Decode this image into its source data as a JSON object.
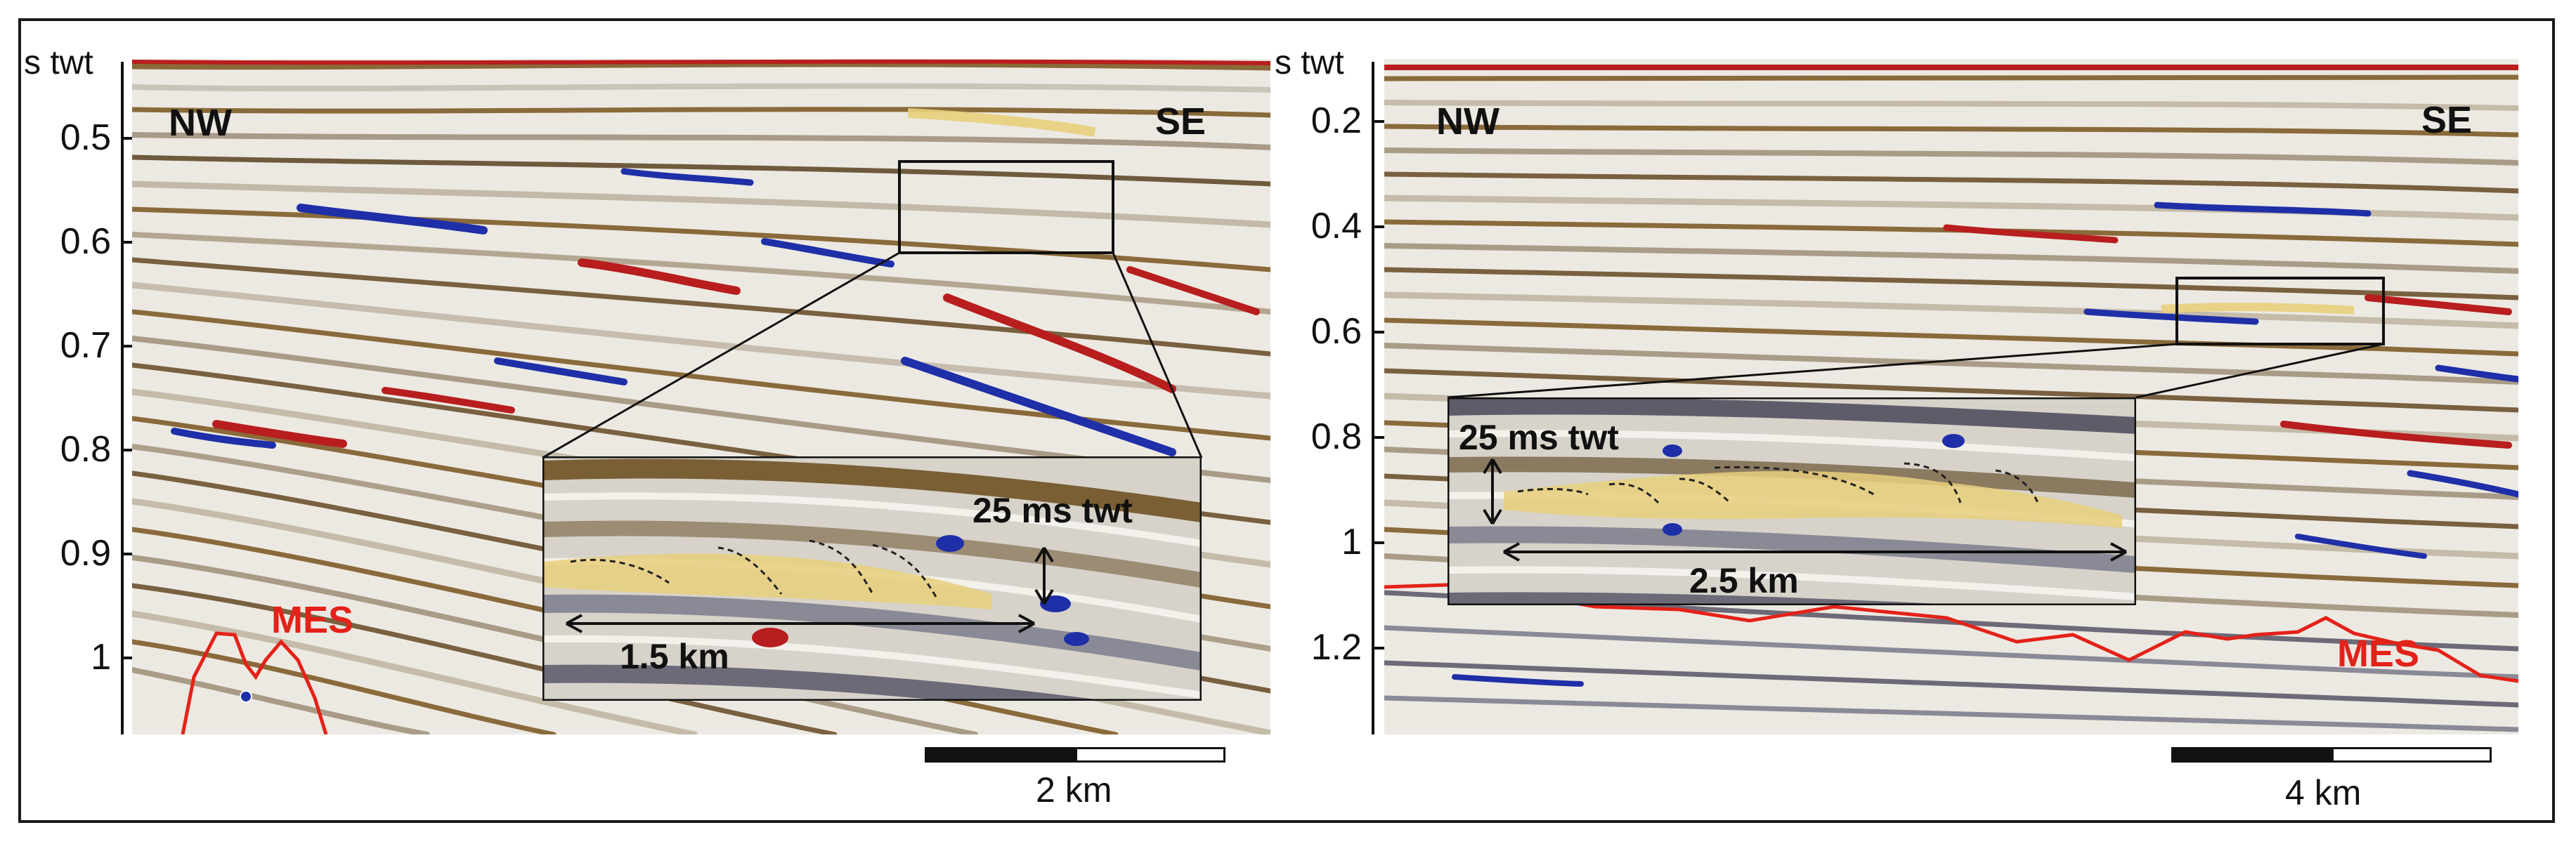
{
  "left_panel": {
    "axis_title": "s twt",
    "ticks": [
      "0.5",
      "0.6",
      "0.7",
      "0.8",
      "0.9",
      "1"
    ],
    "dir_left": "NW",
    "dir_right": "SE",
    "mes_label": "MES",
    "inset_vertical_label": "25 ms twt",
    "inset_horizontal_label": "1.5 km",
    "scale_label": "2 km"
  },
  "right_panel": {
    "axis_title": "s twt",
    "ticks": [
      "0.2",
      "0.4",
      "0.6",
      "0.8",
      "1",
      "1.2"
    ],
    "dir_left": "NW",
    "dir_right": "SE",
    "mes_label": "MES",
    "inset_vertical_label": "25 ms twt",
    "inset_horizontal_label": "2.5 km",
    "scale_label": "4 km"
  },
  "colors": {
    "positive_amplitude": "#1f2fa8",
    "negative_amplitude": "#b81e1e",
    "wavelet_brown": "#8a6a3a",
    "highlight_body": "#e8cf7c",
    "mes_line": "#e32219"
  }
}
